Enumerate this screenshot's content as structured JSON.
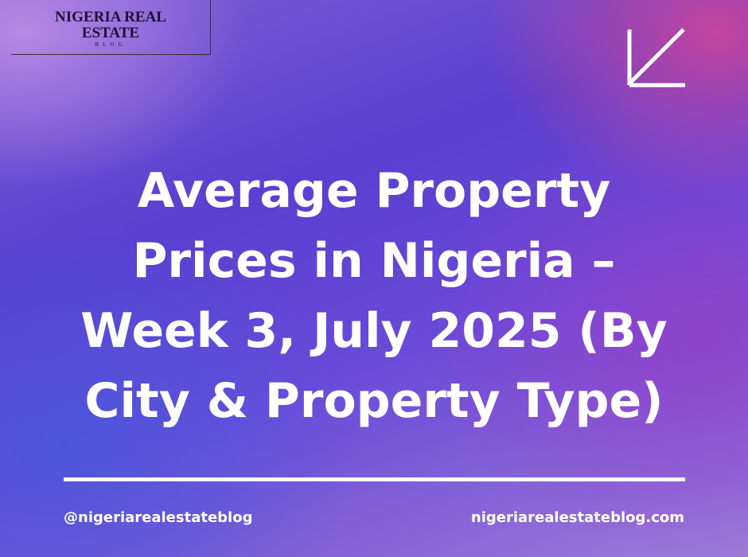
{
  "logo": {
    "line1": "NIGERIA REAL",
    "line2": "ESTATE",
    "line3": "BLOG"
  },
  "title_lines": [
    "Average Property",
    "Prices in Nigeria –",
    "Week 3, July 2025 (By",
    "City & Property Type)"
  ],
  "footer": {
    "handle": "@nigeriarealestateblog",
    "website": "nigeriarealestateblog.com"
  }
}
